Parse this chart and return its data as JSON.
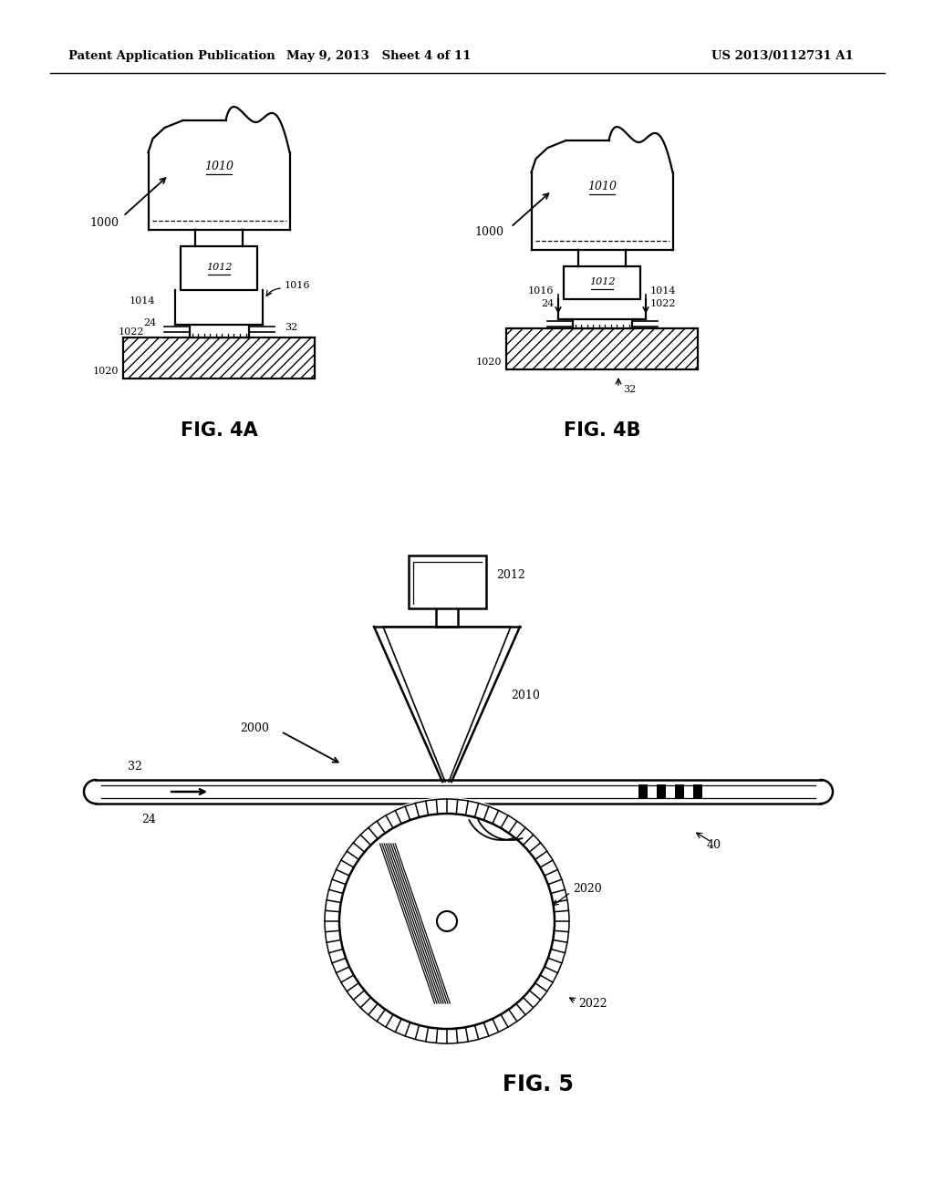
{
  "header_left": "Patent Application Publication",
  "header_center": "May 9, 2013   Sheet 4 of 11",
  "header_right": "US 2013/0112731 A1",
  "fig4a_label": "FIG. 4A",
  "fig4b_label": "FIG. 4B",
  "fig5_label": "FIG. 5",
  "background_color": "#ffffff",
  "line_color": "#000000"
}
